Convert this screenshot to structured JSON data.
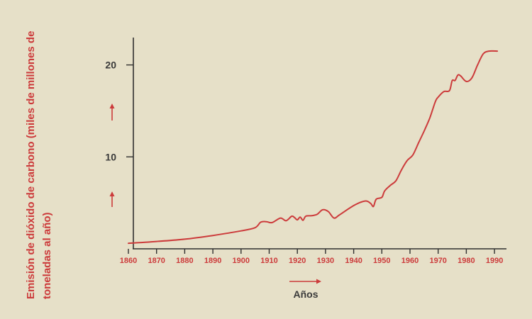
{
  "chart_data": {
    "type": "line",
    "xlabel": "Años",
    "ylabel_line1": "Emisión de dióxido de carbono (miles de millones de",
    "ylabel_line2": "toneladas al año)",
    "xlim": [
      1860,
      1992
    ],
    "ylim": [
      0,
      23
    ],
    "x_ticks": [
      1860,
      1870,
      1880,
      1890,
      1900,
      1910,
      1920,
      1930,
      1940,
      1950,
      1960,
      1970,
      1980,
      1990
    ],
    "y_ticks": [
      10,
      20
    ],
    "grid": false,
    "series": [
      {
        "x": [
          1860,
          1870,
          1880,
          1890,
          1900,
          1905,
          1907,
          1909,
          1911,
          1914,
          1916,
          1918,
          1919,
          1920,
          1921,
          1922,
          1923,
          1925,
          1927,
          1929,
          1931,
          1933,
          1935,
          1940,
          1944,
          1946,
          1947,
          1948,
          1950,
          1951,
          1953,
          1955,
          1957,
          1959,
          1961,
          1963,
          1965,
          1967,
          1969,
          1970,
          1972,
          1974,
          1975,
          1976,
          1977,
          1978,
          1980,
          1982,
          1984,
          1986,
          1988,
          1991
        ],
        "y": [
          0.6,
          0.8,
          1.05,
          1.45,
          1.95,
          2.3,
          2.9,
          2.95,
          2.85,
          3.35,
          3.05,
          3.55,
          3.4,
          3.15,
          3.45,
          3.1,
          3.55,
          3.6,
          3.75,
          4.25,
          4.05,
          3.35,
          3.7,
          4.7,
          5.2,
          4.95,
          4.6,
          5.4,
          5.6,
          6.3,
          6.9,
          7.4,
          8.6,
          9.6,
          10.2,
          11.5,
          12.8,
          14.2,
          16.0,
          16.5,
          17.1,
          17.2,
          18.3,
          18.3,
          18.9,
          18.8,
          18.2,
          18.6,
          20.0,
          21.2,
          21.5,
          21.5
        ]
      }
    ]
  }
}
